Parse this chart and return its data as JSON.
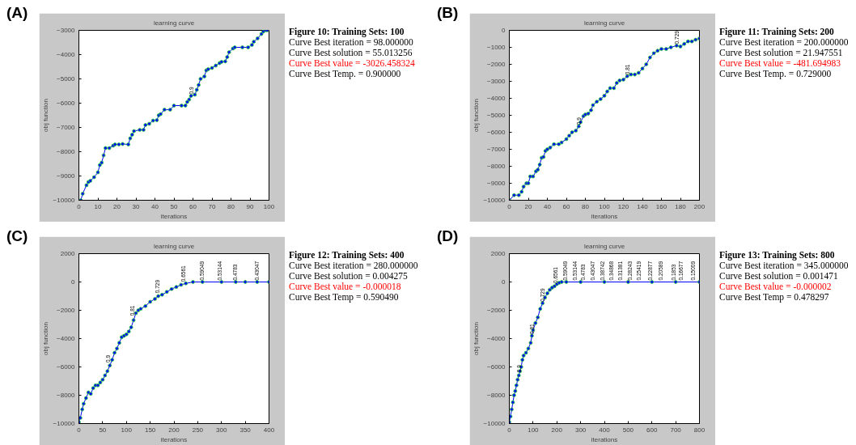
{
  "chart_data": [
    {
      "type": "line",
      "title": "learning curve",
      "xlabel": "iterations",
      "ylabel": "obj function",
      "xlim": [
        0,
        100
      ],
      "ylim": [
        -10000,
        -3000
      ],
      "xticks": [
        0,
        10,
        20,
        30,
        40,
        50,
        60,
        70,
        80,
        90,
        100
      ],
      "yticks": [
        -10000,
        -9000,
        -8000,
        -7000,
        -6000,
        -5000,
        -4000,
        -3000
      ],
      "marker": "circle",
      "x": [
        1,
        2,
        4,
        5,
        6,
        8,
        10,
        11,
        12,
        13,
        14,
        16,
        18,
        19,
        21,
        23,
        26,
        27,
        28,
        29,
        32,
        34,
        35,
        37,
        39,
        41,
        42,
        43,
        45,
        48,
        50,
        54,
        56,
        57,
        58,
        59,
        61,
        62,
        63,
        64,
        66,
        67,
        68,
        70,
        72,
        74,
        75,
        77,
        78,
        79,
        81,
        82,
        86,
        89,
        91,
        92,
        94,
        96,
        97,
        98,
        99
      ],
      "series": [
        {
          "color": "#0000ff",
          "values": [
            -10000,
            -9730,
            -9380,
            -9250,
            -9200,
            -9050,
            -8850,
            -8550,
            -8450,
            -8150,
            -7850,
            -7850,
            -7750,
            -7700,
            -7700,
            -7680,
            -7700,
            -7450,
            -7300,
            -7150,
            -7100,
            -7100,
            -6900,
            -6850,
            -6720,
            -6700,
            -6500,
            -6450,
            -6270,
            -6270,
            -6100,
            -6100,
            -6100,
            -5950,
            -5850,
            -5700,
            -5650,
            -5450,
            -5250,
            -5000,
            -4900,
            -4650,
            -4600,
            -4550,
            -4450,
            -4350,
            -4300,
            -4280,
            -4100,
            -3900,
            -3750,
            -3700,
            -3700,
            -3700,
            -3600,
            -3470,
            -3330,
            -3150,
            -3050,
            -3000,
            -3000
          ]
        }
      ],
      "annotations": [
        "(A)",
        {
          "text": "0.9",
          "x": 59,
          "y": -5700
        }
      ]
    },
    {
      "type": "other",
      "title": "Figure 10: Training Sets: 100",
      "annotations": [
        "Curve Best iteration = 98.000000",
        "Curve Best solution = 55.013256",
        "Curve Best value = -3026.458324",
        "Curve Best Temp. = 0.900000"
      ],
      "colors": [
        "#000000",
        "#000000",
        "#ff0000",
        "#000000"
      ]
    },
    {
      "type": "line",
      "title": "learning curve",
      "xlabel": "iterations",
      "ylabel": "obj function",
      "xlim": [
        0,
        200
      ],
      "ylim": [
        -10000,
        0
      ],
      "xticks": [
        0,
        20,
        40,
        60,
        80,
        100,
        120,
        140,
        160,
        180,
        200
      ],
      "yticks": [
        -10000,
        -9000,
        -8000,
        -7000,
        -6000,
        -5000,
        -4000,
        -3000,
        -2000,
        -1000,
        0
      ],
      "marker": "circle",
      "x": [
        0,
        5,
        10,
        13,
        15,
        18,
        20,
        22,
        25,
        28,
        30,
        32,
        34,
        36,
        38,
        40,
        43,
        47,
        52,
        55,
        60,
        63,
        66,
        70,
        73,
        75,
        78,
        80,
        83,
        86,
        88,
        92,
        96,
        100,
        103,
        106,
        110,
        113,
        116,
        120,
        124,
        128,
        132,
        136,
        140,
        144,
        148,
        152,
        156,
        160,
        165,
        170,
        176,
        180,
        184,
        188,
        192,
        196,
        200
      ],
      "series": [
        {
          "color": "#0000ff",
          "values": [
            -10000,
            -9700,
            -9700,
            -9500,
            -9200,
            -9000,
            -9000,
            -8600,
            -8600,
            -8300,
            -8200,
            -7900,
            -7500,
            -7450,
            -7100,
            -7000,
            -6900,
            -6700,
            -6700,
            -6600,
            -6400,
            -6200,
            -6000,
            -5900,
            -5650,
            -5400,
            -5050,
            -4950,
            -4900,
            -4700,
            -4400,
            -4200,
            -4050,
            -3850,
            -3600,
            -3400,
            -3400,
            -3100,
            -2950,
            -2900,
            -2700,
            -2600,
            -2600,
            -2500,
            -2250,
            -2000,
            -1600,
            -1350,
            -1200,
            -1100,
            -1100,
            -1000,
            -900,
            -950,
            -800,
            -650,
            -650,
            -550,
            -480
          ]
        }
      ],
      "annotations": [
        "(B)",
        {
          "text": "0.9",
          "x": 73,
          "y": -5650
        },
        {
          "text": "0.81",
          "x": 124,
          "y": -2700
        },
        {
          "text": "0.729",
          "x": 176,
          "y": -900
        }
      ]
    },
    {
      "type": "other",
      "title": "Figure 11: Training Sets: 200",
      "annotations": [
        "Curve Best iteration = 200.000000",
        "Curve Best solution = 21.947551",
        "Curve Best value = -481.694983",
        "Curve Best Temp. = 0.729000"
      ],
      "colors": [
        "#000000",
        "#000000",
        "#ff0000",
        "#000000"
      ]
    },
    {
      "type": "line",
      "title": "learning curve",
      "xlabel": "iterations",
      "ylabel": "obj function",
      "xlim": [
        0,
        400
      ],
      "ylim": [
        -10000,
        2000
      ],
      "xticks": [
        0,
        50,
        100,
        150,
        200,
        250,
        300,
        350,
        400
      ],
      "yticks": [
        -10000,
        -8000,
        -6000,
        -4000,
        -2000,
        0,
        2000
      ],
      "marker": "circle",
      "x": [
        0,
        3,
        7,
        10,
        15,
        20,
        25,
        30,
        35,
        40,
        45,
        50,
        55,
        60,
        65,
        70,
        75,
        80,
        85,
        90,
        95,
        100,
        105,
        110,
        115,
        120,
        125,
        130,
        140,
        150,
        160,
        167,
        175,
        185,
        195,
        205,
        215,
        225,
        240,
        260,
        300,
        330,
        350,
        375,
        400
      ],
      "series": [
        {
          "color": "#0000ff",
          "values": [
            -9900,
            -9600,
            -9000,
            -8600,
            -8200,
            -7800,
            -7900,
            -7500,
            -7300,
            -7300,
            -7100,
            -6900,
            -6600,
            -6300,
            -5900,
            -5500,
            -5000,
            -4700,
            -4300,
            -3900,
            -3800,
            -3700,
            -3500,
            -3200,
            -2700,
            -2200,
            -2000,
            -1900,
            -1700,
            -1400,
            -1200,
            -1000,
            -900,
            -700,
            -500,
            -350,
            -200,
            -100,
            0,
            0,
            0,
            0,
            0,
            0,
            0
          ]
        }
      ],
      "annotations": [
        "(C)",
        {
          "text": "0.9",
          "x": 62,
          "y": -5800
        },
        {
          "text": "0.81",
          "x": 112,
          "y": -2500
        },
        {
          "text": "0.729",
          "x": 165,
          "y": -900
        },
        {
          "text": "0.6561",
          "x": 220,
          "y": -100
        },
        {
          "text": "0.59049",
          "x": 259,
          "y": 0
        },
        {
          "text": "0.53144",
          "x": 296,
          "y": 0
        },
        {
          "text": "0.4783",
          "x": 328,
          "y": 0
        },
        {
          "text": "0.43047",
          "x": 375,
          "y": 0
        }
      ]
    },
    {
      "type": "other",
      "title": "Figure 12: Training Sets: 400",
      "annotations": [
        "Curve Best iteration = 280.000000",
        "Curve Best solution = 0.004275",
        "Curve Best value = -0.000018",
        "Curve Best Temp = 0.590490"
      ],
      "colors": [
        "#000000",
        "#000000",
        "#ff0000",
        "#000000"
      ]
    },
    {
      "type": "line",
      "title": "learning curve",
      "xlabel": "iterations",
      "ylabel": "obj function",
      "xlim": [
        0,
        800
      ],
      "ylim": [
        -10000,
        2000
      ],
      "xticks": [
        0,
        100,
        200,
        300,
        400,
        500,
        600,
        700,
        800
      ],
      "yticks": [
        -10000,
        -8000,
        -6000,
        -4000,
        -2000,
        0,
        2000
      ],
      "marker": "circle",
      "x": [
        0,
        5,
        10,
        15,
        20,
        25,
        30,
        35,
        40,
        45,
        50,
        55,
        60,
        70,
        80,
        90,
        95,
        100,
        110,
        120,
        130,
        140,
        150,
        160,
        170,
        180,
        190,
        200,
        210,
        220,
        240,
        300,
        400,
        500,
        600,
        700,
        800
      ],
      "series": [
        {
          "color": "#0000ff",
          "values": [
            -9900,
            -9500,
            -9000,
            -8500,
            -8000,
            -7700,
            -7300,
            -6900,
            -6600,
            -6300,
            -6000,
            -5500,
            -5200,
            -5000,
            -4700,
            -4300,
            -3800,
            -3400,
            -2900,
            -2500,
            -1900,
            -1500,
            -1100,
            -800,
            -550,
            -400,
            -300,
            -150,
            -50,
            0,
            0,
            0,
            0,
            0,
            0,
            0,
            0
          ]
        }
      ],
      "annotations": [
        "(D)",
        {
          "text": "0.9",
          "x": 40,
          "y": -6500
        },
        {
          "text": "0.81",
          "x": 95,
          "y": -3800
        },
        {
          "text": "0.729",
          "x": 141,
          "y": -1500
        },
        {
          "text": "0.6561",
          "x": 195,
          "y": -200
        },
        {
          "text": "0.59049",
          "x": 236,
          "y": 0
        },
        {
          "text": "0.53144",
          "x": 277,
          "y": 0
        },
        {
          "text": "0.4783",
          "x": 311,
          "y": 0
        },
        {
          "text": "0.43047",
          "x": 352,
          "y": 0
        },
        {
          "text": "0.38742",
          "x": 391,
          "y": 0
        },
        {
          "text": "0.34868",
          "x": 430,
          "y": 0
        },
        {
          "text": "0.31381",
          "x": 467,
          "y": 0
        },
        {
          "text": "0.28243",
          "x": 508,
          "y": 0
        },
        {
          "text": "0.25419",
          "x": 543,
          "y": 0
        },
        {
          "text": "0.22877",
          "x": 594,
          "y": 0
        },
        {
          "text": "0.20589",
          "x": 638,
          "y": 0
        },
        {
          "text": "0.1853",
          "x": 690,
          "y": 0
        },
        {
          "text": "0.16677",
          "x": 722,
          "y": 0
        },
        {
          "text": "0.15009",
          "x": 773,
          "y": 0
        }
      ]
    },
    {
      "type": "other",
      "title": "Figure 13: Training Sets: 800",
      "annotations": [
        "Curve Best iteration = 345.000000",
        "Curve Best solution = 0.001471",
        "Curve Best value = -0.000002",
        "Curve Best Temp = 0.478297"
      ],
      "colors": [
        "#000000",
        "#000000",
        "#ff0000",
        "#000000"
      ]
    }
  ]
}
